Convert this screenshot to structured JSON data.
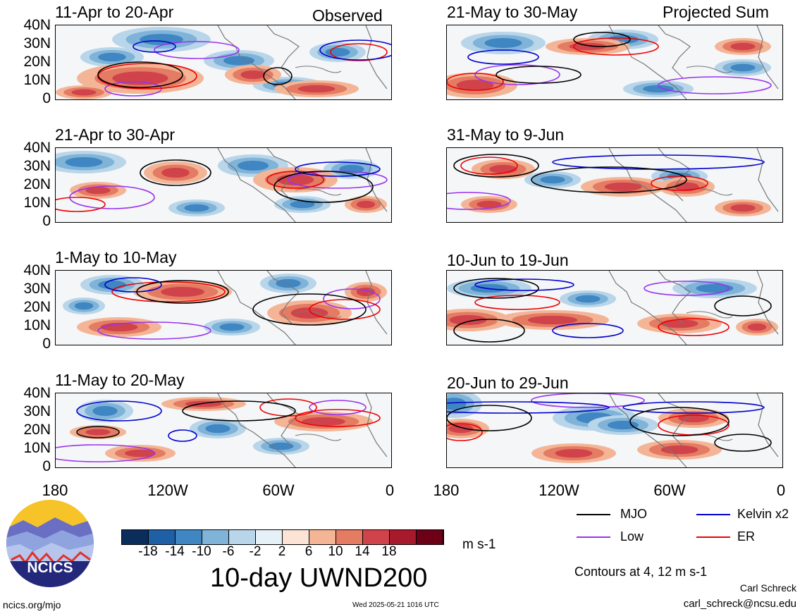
{
  "left_column_label": "Observed",
  "right_column_label": "Projected Sum",
  "panels_left": [
    {
      "title": "11-Apr to 20-Apr"
    },
    {
      "title": "21-Apr to 30-Apr"
    },
    {
      "title": "1-May to 10-May"
    },
    {
      "title": "11-May to 20-May"
    }
  ],
  "panels_right": [
    {
      "title": "21-May to 30-May"
    },
    {
      "title": "31-May to 9-Jun"
    },
    {
      "title": "10-Jun to 19-Jun"
    },
    {
      "title": "20-Jun to 29-Jun"
    }
  ],
  "lat_labels": [
    "40N",
    "30N",
    "20N",
    "10N",
    "0"
  ],
  "lon_labels": [
    "180",
    "120W",
    "60W",
    "0"
  ],
  "legend": {
    "items": [
      {
        "label": "MJO",
        "color": "#000000"
      },
      {
        "label": "Kelvin x2",
        "color": "#0000cc"
      },
      {
        "label": "Low",
        "color": "#9933ee"
      },
      {
        "label": "ER",
        "color": "#ee0000"
      }
    ],
    "contours_note": "Contours at 4, 12 m s-1"
  },
  "colorbar": {
    "ticks": [
      "-18",
      "-14",
      "-10",
      "-6",
      "-2",
      "2",
      "6",
      "10",
      "14",
      "18"
    ],
    "units": "m s-1",
    "colors": [
      "#0b2d5c",
      "#1f5fa6",
      "#3f86c2",
      "#7fb3d8",
      "#b8d5ea",
      "#e6f0f7",
      "#fbe4d6",
      "#f4b596",
      "#e47b63",
      "#d1434a",
      "#a61a2c",
      "#6b0016"
    ]
  },
  "main_title": "10-day UWND200",
  "logo_text": "NCICS",
  "footer_left": "ncics.org/mjo",
  "footer_center": "Wed 2025-05-21 1016 UTC",
  "author_name": "Carl Schreck",
  "author_email": "carl_schreck@ncsu.edu"
}
